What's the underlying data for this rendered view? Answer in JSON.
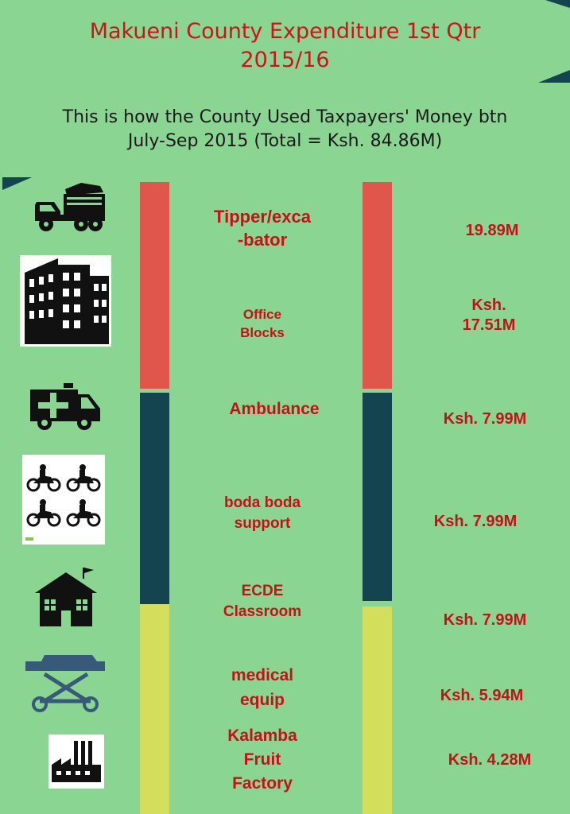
{
  "title": "Makueni County Expenditure 1st Qtr\n2015/16",
  "subtitle": "This is how the County Used Taxpayers' Money  btn\nJuly-Sep 2015 (Total = Ksh. 84.86M)",
  "colors": {
    "background": "#8ad592",
    "red": "#e0564a",
    "navy": "#14444f",
    "yellow": "#d3de5d",
    "text": "#c8101a"
  },
  "chart_data": {
    "type": "table",
    "items": [
      {
        "category": "Tipper/exca\n-bator",
        "value": 19.89,
        "display": "19.89M",
        "icon": "tipper-truck-icon",
        "group": "red"
      },
      {
        "category": "Office\nBlocks",
        "value": 17.51,
        "display": "Ksh.\n17.51M",
        "icon": "office-building-icon",
        "group": "red"
      },
      {
        "category": "Ambulance",
        "value": 7.99,
        "display": "Ksh. 7.99M",
        "icon": "ambulance-icon",
        "group": "navy"
      },
      {
        "category": "boda boda\nsupport",
        "value": 7.99,
        "display": "Ksh. 7.99M",
        "icon": "motorcycles-icon",
        "group": "navy"
      },
      {
        "category": "ECDE\nClassroom",
        "value": 7.99,
        "display": "Ksh. 7.99M",
        "icon": "school-house-icon",
        "group": "yellow"
      },
      {
        "category": "medical\nequip",
        "value": 5.94,
        "display": "Ksh. 5.94M",
        "icon": "stretcher-icon",
        "group": "yellow"
      },
      {
        "category": "Kalamba\nFruit\nFactory",
        "value": 4.28,
        "display": "Ksh. 4.28M",
        "icon": "factory-icon",
        "group": "yellow"
      }
    ]
  }
}
